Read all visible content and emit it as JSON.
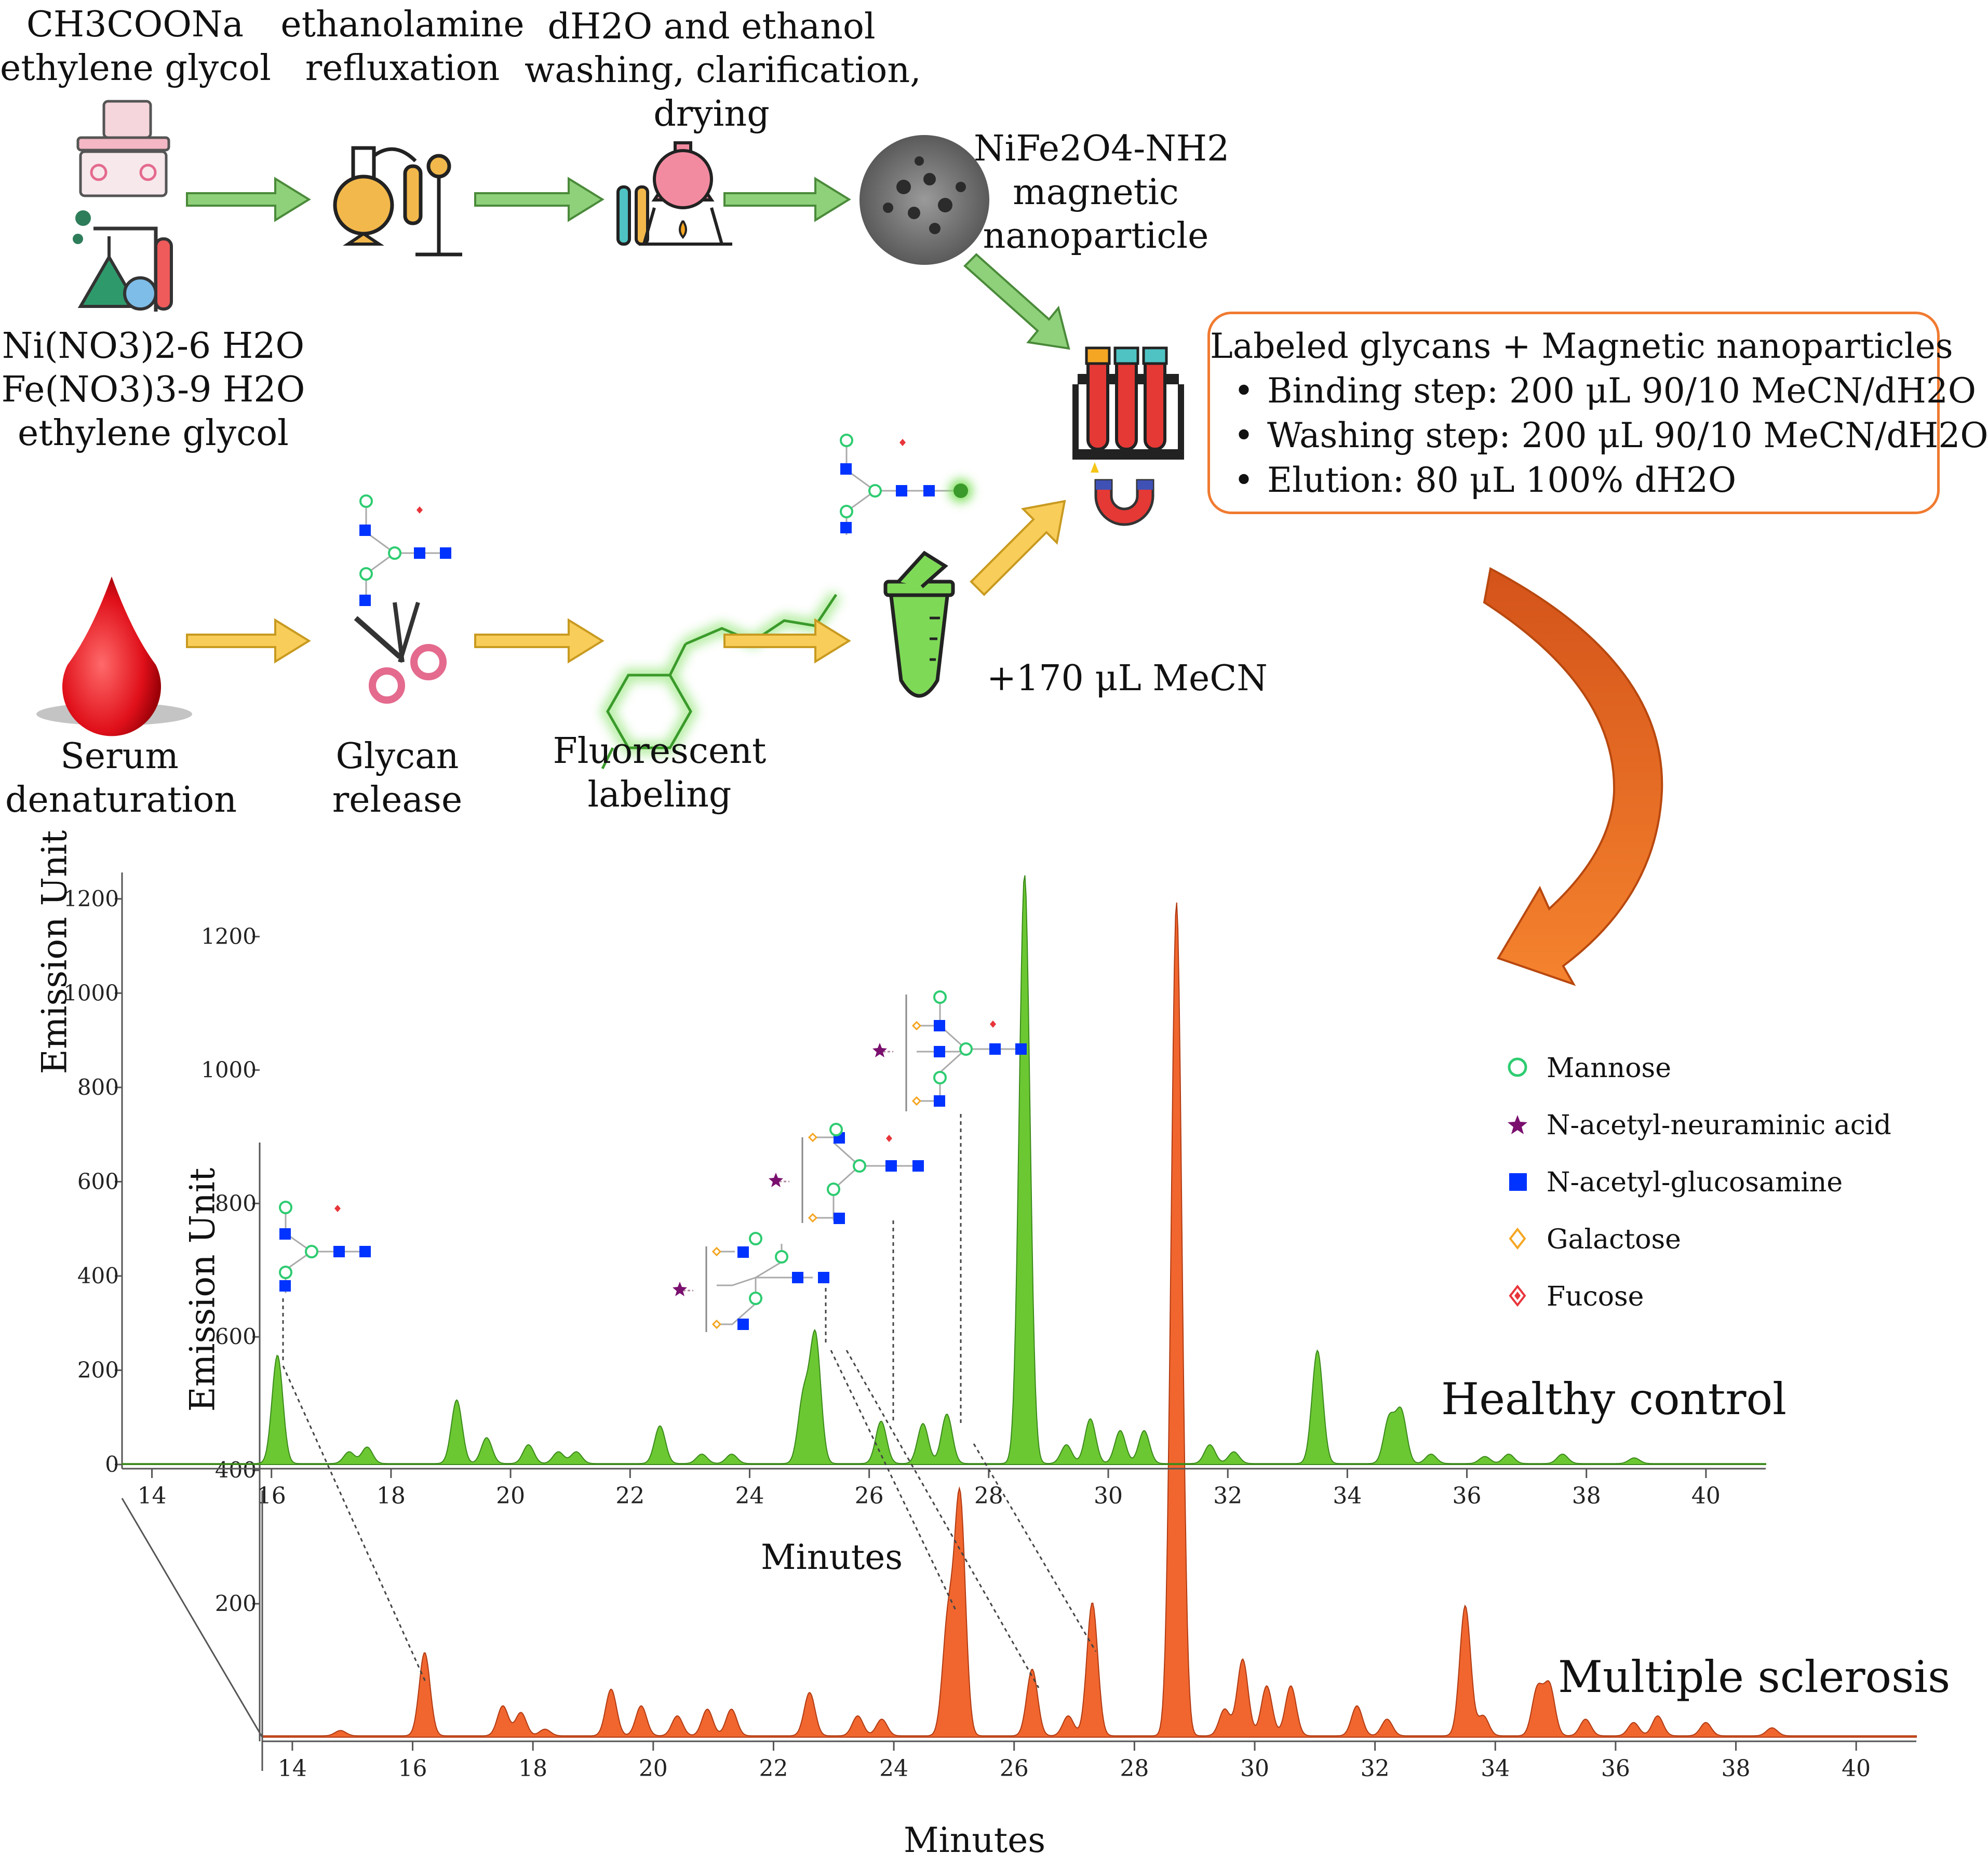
{
  "synthesis": {
    "step1_top": [
      "CH3COONa",
      "ethylene glycol"
    ],
    "step1_bottom": [
      "Ni(NO3)2-6 H2O",
      "Fe(NO3)3-9 H2O",
      "ethylene glycol"
    ],
    "step2": [
      "ethanolamine",
      "refluxation"
    ],
    "step3": [
      "dH2O and ethanol",
      "washing, clarification,",
      "drying"
    ],
    "nanoparticle": [
      "NiFe2O4-NH2",
      "magnetic",
      "nanoparticle"
    ]
  },
  "sample_prep": {
    "serum": [
      "Serum",
      "denaturation"
    ],
    "glycan": [
      "Glycan",
      "release"
    ],
    "label": [
      "Fluorescent",
      "labeling"
    ],
    "mecn": "+170 μL MeCN"
  },
  "cleanup_box": {
    "title": "Labeled glycans + Magnetic nanoparticles",
    "steps": [
      "Binding step: 200 μL 90/10 MeCN/dH2O",
      "Washing step: 200 μL 90/10 MeCN/dH2O",
      "Elution: 80 μL 100% dH2O"
    ]
  },
  "legend": [
    {
      "name": "Mannose",
      "symbol": "circle",
      "color": "#2ecc71"
    },
    {
      "name": "N-acetyl-neuraminic acid",
      "symbol": "star",
      "color": "#7a0f6e"
    },
    {
      "name": "N-acetyl-glucosamine",
      "symbol": "square",
      "color": "#0033ff"
    },
    {
      "name": "Galactose",
      "symbol": "diamond",
      "color": "#f5a623"
    },
    {
      "name": "Fucose",
      "symbol": "diamond-fill",
      "color": "#e8353a"
    }
  ],
  "colors": {
    "green_arrow": "#8fd07a",
    "yellow_arrow": "#f9cd5a",
    "orange": "#f07a30",
    "healthy_trace": "#6cc832",
    "ms_trace": "#f0662e"
  },
  "chart_data": [
    {
      "type": "line",
      "title": "Healthy control",
      "xlabel": "Minutes",
      "ylabel": "Emission Unit",
      "xlim": [
        13.5,
        41
      ],
      "ylim": [
        0,
        1300
      ],
      "xticks": [
        14,
        16,
        18,
        20,
        22,
        24,
        26,
        28,
        30,
        32,
        34,
        36,
        38,
        40
      ],
      "yticks": [
        0,
        200,
        400,
        600,
        800,
        1000,
        1200
      ],
      "peaks": [
        {
          "x": 16.1,
          "y": 230
        },
        {
          "x": 17.3,
          "y": 25
        },
        {
          "x": 17.6,
          "y": 35
        },
        {
          "x": 19.1,
          "y": 135
        },
        {
          "x": 19.6,
          "y": 55
        },
        {
          "x": 20.3,
          "y": 40
        },
        {
          "x": 20.8,
          "y": 25
        },
        {
          "x": 21.1,
          "y": 25
        },
        {
          "x": 22.5,
          "y": 80
        },
        {
          "x": 23.2,
          "y": 20
        },
        {
          "x": 23.7,
          "y": 20
        },
        {
          "x": 24.9,
          "y": 140
        },
        {
          "x": 25.1,
          "y": 270
        },
        {
          "x": 26.2,
          "y": 90
        },
        {
          "x": 26.9,
          "y": 85
        },
        {
          "x": 27.3,
          "y": 105
        },
        {
          "x": 28.6,
          "y": 1250
        },
        {
          "x": 29.3,
          "y": 40
        },
        {
          "x": 29.7,
          "y": 95
        },
        {
          "x": 30.2,
          "y": 70
        },
        {
          "x": 30.6,
          "y": 70
        },
        {
          "x": 31.7,
          "y": 40
        },
        {
          "x": 32.1,
          "y": 25
        },
        {
          "x": 33.5,
          "y": 240
        },
        {
          "x": 34.7,
          "y": 95
        },
        {
          "x": 34.9,
          "y": 110
        },
        {
          "x": 35.4,
          "y": 20
        },
        {
          "x": 36.3,
          "y": 15
        },
        {
          "x": 36.7,
          "y": 20
        },
        {
          "x": 37.6,
          "y": 20
        },
        {
          "x": 38.8,
          "y": 12
        }
      ]
    },
    {
      "type": "line",
      "title": "Multiple sclerosis",
      "xlabel": "Minutes",
      "ylabel": "Emission Unit",
      "xlim": [
        13.5,
        41
      ],
      "ylim": [
        0,
        1300
      ],
      "xticks": [
        14,
        16,
        18,
        20,
        22,
        24,
        26,
        28,
        30,
        32,
        34,
        36,
        38,
        40
      ],
      "yticks": [
        200,
        400,
        600,
        800,
        1000,
        1200
      ],
      "peaks": [
        {
          "x": 14.8,
          "y": 8
        },
        {
          "x": 16.2,
          "y": 125
        },
        {
          "x": 17.5,
          "y": 45
        },
        {
          "x": 17.8,
          "y": 35
        },
        {
          "x": 18.2,
          "y": 10
        },
        {
          "x": 19.3,
          "y": 70
        },
        {
          "x": 19.8,
          "y": 45
        },
        {
          "x": 20.4,
          "y": 30
        },
        {
          "x": 20.9,
          "y": 40
        },
        {
          "x": 21.3,
          "y": 40
        },
        {
          "x": 22.6,
          "y": 65
        },
        {
          "x": 23.4,
          "y": 30
        },
        {
          "x": 23.8,
          "y": 25
        },
        {
          "x": 24.9,
          "y": 170
        },
        {
          "x": 25.1,
          "y": 355
        },
        {
          "x": 26.3,
          "y": 100
        },
        {
          "x": 26.9,
          "y": 30
        },
        {
          "x": 27.3,
          "y": 200
        },
        {
          "x": 28.7,
          "y": 1250
        },
        {
          "x": 29.5,
          "y": 40
        },
        {
          "x": 29.8,
          "y": 115
        },
        {
          "x": 30.2,
          "y": 75
        },
        {
          "x": 30.6,
          "y": 75
        },
        {
          "x": 31.7,
          "y": 45
        },
        {
          "x": 32.2,
          "y": 25
        },
        {
          "x": 33.5,
          "y": 195
        },
        {
          "x": 33.8,
          "y": 30
        },
        {
          "x": 34.7,
          "y": 70
        },
        {
          "x": 34.9,
          "y": 75
        },
        {
          "x": 35.5,
          "y": 25
        },
        {
          "x": 36.3,
          "y": 20
        },
        {
          "x": 36.7,
          "y": 30
        },
        {
          "x": 37.5,
          "y": 20
        },
        {
          "x": 38.6,
          "y": 12
        }
      ]
    }
  ]
}
